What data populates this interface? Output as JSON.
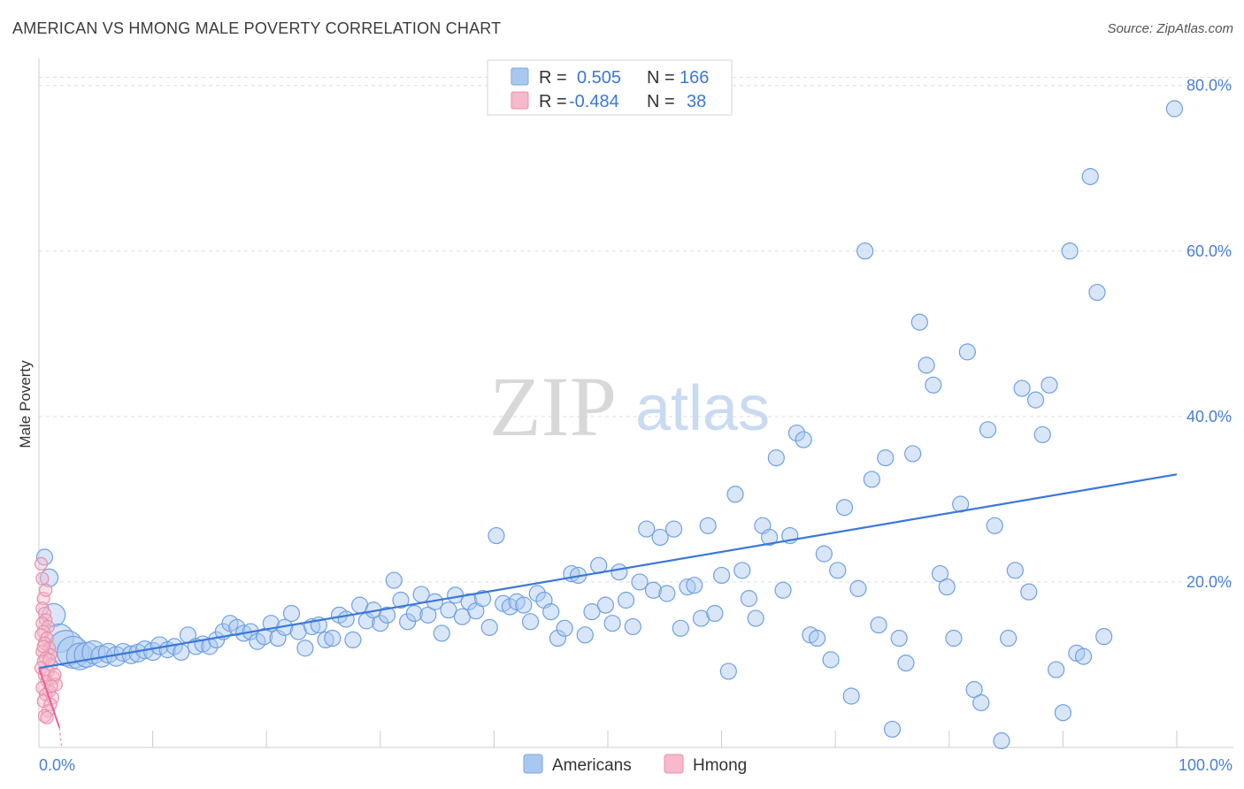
{
  "header": {
    "title": "AMERICAN VS HMONG MALE POVERTY CORRELATION CHART",
    "source": "Source: ZipAtlas.com"
  },
  "watermark": {
    "zip": "ZIP",
    "atlas": "atlas"
  },
  "legend": {
    "rows": [
      {
        "r_label": "R =",
        "r_value": "0.505",
        "n_label": "N =",
        "n_value": "166",
        "color": "#a9c8f0",
        "stroke": "#7aa6e0"
      },
      {
        "r_label": "R =",
        "r_value": "-0.484",
        "n_label": "N =",
        "n_value": "38",
        "color": "#f7b9cb",
        "stroke": "#e890aa"
      }
    ]
  },
  "bottom_legend": [
    {
      "label": "Americans",
      "color": "#a9c8f0",
      "stroke": "#7aa6e0"
    },
    {
      "label": "Hmong",
      "color": "#f7b9cb",
      "stroke": "#e890aa"
    }
  ],
  "chart_data": {
    "type": "scatter",
    "title": "AMERICAN VS HMONG MALE POVERTY CORRELATION CHART",
    "xlabel": "",
    "ylabel": "Male Poverty",
    "xlim": [
      0,
      100
    ],
    "ylim": [
      0,
      82
    ],
    "x_tick_labels": [
      {
        "value": 0,
        "label": "0.0%"
      },
      {
        "value": 100,
        "label": "100.0%"
      }
    ],
    "y_tick_labels": [
      {
        "value": 20,
        "label": "20.0%"
      },
      {
        "value": 40,
        "label": "40.0%"
      },
      {
        "value": 60,
        "label": "60.0%"
      },
      {
        "value": 80,
        "label": "80.0%"
      }
    ],
    "grid": "horizontal dashed",
    "series": [
      {
        "name": "Americans",
        "color": "#6fa0e4",
        "fill": "#a9c8f0",
        "trend": {
          "x": [
            0,
            100
          ],
          "y": [
            9.6,
            33.0
          ],
          "color": "#3b78d8"
        },
        "points": [
          [
            0.5,
            23.0,
            9
          ],
          [
            0.9,
            20.5,
            10
          ],
          [
            1.3,
            16.0,
            13
          ],
          [
            1.8,
            13.2,
            16
          ],
          [
            2.4,
            12.0,
            20
          ],
          [
            3.0,
            11.5,
            18
          ],
          [
            3.6,
            11.0,
            15
          ],
          [
            4.2,
            11.2,
            14
          ],
          [
            4.8,
            11.5,
            13
          ],
          [
            5.5,
            11.0,
            12
          ],
          [
            6.1,
            11.4,
            11
          ],
          [
            6.8,
            11.0,
            11
          ],
          [
            7.4,
            11.5,
            10
          ],
          [
            8.1,
            11.2,
            10
          ],
          [
            8.7,
            11.4,
            10
          ],
          [
            9.3,
            11.8,
            10
          ],
          [
            10.0,
            11.6,
            10
          ],
          [
            10.6,
            12.3,
            10
          ],
          [
            11.3,
            11.8,
            9
          ],
          [
            11.9,
            12.2,
            9
          ],
          [
            12.5,
            11.5,
            9
          ],
          [
            13.1,
            13.6,
            9
          ],
          [
            13.8,
            12.2,
            9
          ],
          [
            14.4,
            12.5,
            9
          ],
          [
            15.0,
            12.2,
            9
          ],
          [
            15.6,
            13.0,
            9
          ],
          [
            16.2,
            14.0,
            9
          ],
          [
            16.8,
            15.0,
            9
          ],
          [
            17.4,
            14.5,
            9
          ],
          [
            18.0,
            13.8,
            9
          ],
          [
            18.6,
            14.0,
            9
          ],
          [
            19.2,
            12.8,
            9
          ],
          [
            19.8,
            13.4,
            9
          ],
          [
            20.4,
            15.0,
            9
          ],
          [
            21.0,
            13.2,
            9
          ],
          [
            21.6,
            14.5,
            9
          ],
          [
            22.2,
            16.2,
            9
          ],
          [
            22.8,
            14.0,
            9
          ],
          [
            23.4,
            12.0,
            9
          ],
          [
            24.0,
            14.6,
            9
          ],
          [
            24.6,
            14.8,
            9
          ],
          [
            25.2,
            13.0,
            9
          ],
          [
            25.8,
            13.2,
            9
          ],
          [
            26.4,
            16.0,
            9
          ],
          [
            27.0,
            15.5,
            9
          ],
          [
            27.6,
            13.0,
            9
          ],
          [
            28.2,
            17.2,
            9
          ],
          [
            28.8,
            15.3,
            9
          ],
          [
            29.4,
            16.6,
            9
          ],
          [
            30.0,
            15.0,
            9
          ],
          [
            30.6,
            16.0,
            9
          ],
          [
            31.2,
            20.2,
            9
          ],
          [
            31.8,
            17.8,
            9
          ],
          [
            32.4,
            15.2,
            9
          ],
          [
            33.0,
            16.2,
            9
          ],
          [
            33.6,
            18.5,
            9
          ],
          [
            34.2,
            16.0,
            9
          ],
          [
            34.8,
            17.6,
            9
          ],
          [
            35.4,
            13.8,
            9
          ],
          [
            36.0,
            16.6,
            9
          ],
          [
            36.6,
            18.4,
            9
          ],
          [
            37.2,
            15.8,
            9
          ],
          [
            37.8,
            17.6,
            9
          ],
          [
            38.4,
            16.5,
            9
          ],
          [
            39.0,
            18.0,
            9
          ],
          [
            39.6,
            14.5,
            9
          ],
          [
            40.2,
            25.6,
            9
          ],
          [
            40.8,
            17.4,
            9
          ],
          [
            41.4,
            17.0,
            9
          ],
          [
            42.0,
            17.6,
            9
          ],
          [
            42.6,
            17.2,
            9
          ],
          [
            43.2,
            15.2,
            9
          ],
          [
            43.8,
            18.6,
            9
          ],
          [
            44.4,
            17.8,
            9
          ],
          [
            45.0,
            16.4,
            9
          ],
          [
            45.6,
            13.2,
            9
          ],
          [
            46.2,
            14.4,
            9
          ],
          [
            46.8,
            21.0,
            9
          ],
          [
            47.4,
            20.8,
            9
          ],
          [
            48.0,
            13.6,
            9
          ],
          [
            48.6,
            16.4,
            9
          ],
          [
            49.2,
            22.0,
            9
          ],
          [
            49.8,
            17.2,
            9
          ],
          [
            50.4,
            15.0,
            9
          ],
          [
            51.0,
            21.2,
            9
          ],
          [
            51.6,
            17.8,
            9
          ],
          [
            52.2,
            14.6,
            9
          ],
          [
            52.8,
            20.0,
            9
          ],
          [
            53.4,
            26.4,
            9
          ],
          [
            54.0,
            19.0,
            9
          ],
          [
            54.6,
            25.4,
            9
          ],
          [
            55.2,
            18.6,
            9
          ],
          [
            55.8,
            26.4,
            9
          ],
          [
            56.4,
            14.4,
            9
          ],
          [
            57.0,
            19.4,
            9
          ],
          [
            57.6,
            19.6,
            9
          ],
          [
            58.2,
            15.6,
            9
          ],
          [
            58.8,
            26.8,
            9
          ],
          [
            59.4,
            16.2,
            9
          ],
          [
            60.0,
            20.8,
            9
          ],
          [
            60.6,
            9.2,
            9
          ],
          [
            61.2,
            30.6,
            9
          ],
          [
            61.8,
            21.4,
            9
          ],
          [
            62.4,
            18.0,
            9
          ],
          [
            63.0,
            15.6,
            9
          ],
          [
            63.6,
            26.8,
            9
          ],
          [
            64.2,
            25.4,
            9
          ],
          [
            64.8,
            35.0,
            9
          ],
          [
            65.4,
            19.0,
            9
          ],
          [
            66.0,
            25.6,
            9
          ],
          [
            66.6,
            38.0,
            9
          ],
          [
            67.2,
            37.2,
            9
          ],
          [
            67.8,
            13.6,
            9
          ],
          [
            68.4,
            13.2,
            9
          ],
          [
            69.0,
            23.4,
            9
          ],
          [
            69.6,
            10.6,
            9
          ],
          [
            70.2,
            21.4,
            9
          ],
          [
            70.8,
            29.0,
            9
          ],
          [
            71.4,
            6.2,
            9
          ],
          [
            72.0,
            19.2,
            9
          ],
          [
            72.6,
            60.0,
            9
          ],
          [
            73.2,
            32.4,
            9
          ],
          [
            73.8,
            14.8,
            9
          ],
          [
            74.4,
            35.0,
            9
          ],
          [
            75.0,
            2.2,
            9
          ],
          [
            75.6,
            13.2,
            9
          ],
          [
            76.2,
            10.2,
            9
          ],
          [
            76.8,
            35.5,
            9
          ],
          [
            77.4,
            51.4,
            9
          ],
          [
            78.0,
            46.2,
            9
          ],
          [
            78.6,
            43.8,
            9
          ],
          [
            79.2,
            21.0,
            9
          ],
          [
            79.8,
            19.4,
            9
          ],
          [
            80.4,
            13.2,
            9
          ],
          [
            81.0,
            29.4,
            9
          ],
          [
            81.6,
            47.8,
            9
          ],
          [
            82.2,
            7.0,
            9
          ],
          [
            82.8,
            5.4,
            9
          ],
          [
            83.4,
            38.4,
            9
          ],
          [
            84.0,
            26.8,
            9
          ],
          [
            84.6,
            0.8,
            9
          ],
          [
            85.2,
            13.2,
            9
          ],
          [
            85.8,
            21.4,
            9
          ],
          [
            86.4,
            43.4,
            9
          ],
          [
            87.0,
            18.8,
            9
          ],
          [
            87.6,
            42.0,
            9
          ],
          [
            88.2,
            37.8,
            9
          ],
          [
            88.8,
            43.8,
            9
          ],
          [
            89.4,
            9.4,
            9
          ],
          [
            90.0,
            4.2,
            9
          ],
          [
            90.6,
            60.0,
            9
          ],
          [
            91.2,
            11.4,
            9
          ],
          [
            91.8,
            11.0,
            9
          ],
          [
            92.4,
            69.0,
            9
          ],
          [
            93.0,
            55.0,
            9
          ],
          [
            93.6,
            13.4,
            9
          ],
          [
            99.8,
            77.2,
            9
          ]
        ]
      },
      {
        "name": "Hmong",
        "color": "#e890aa",
        "fill": "#f7b9cb",
        "trend": {
          "x": [
            0,
            1.8
          ],
          "y": [
            9.6,
            2.4
          ],
          "color": "#e8609a",
          "dashed_to": [
            2.0,
            0.0
          ]
        },
        "points": [
          [
            0.2,
            22.2,
            7
          ],
          [
            0.4,
            18.0,
            7
          ],
          [
            0.3,
            16.8,
            7
          ],
          [
            0.5,
            16.2,
            7
          ],
          [
            0.6,
            15.4,
            7
          ],
          [
            0.3,
            15.0,
            7
          ],
          [
            0.8,
            14.6,
            7
          ],
          [
            0.4,
            14.0,
            7
          ],
          [
            0.2,
            13.6,
            7
          ],
          [
            0.7,
            13.2,
            7
          ],
          [
            0.5,
            12.6,
            7
          ],
          [
            0.9,
            12.0,
            7
          ],
          [
            0.3,
            11.6,
            7
          ],
          [
            1.0,
            11.2,
            7
          ],
          [
            0.6,
            10.8,
            7
          ],
          [
            0.4,
            10.4,
            7
          ],
          [
            1.1,
            10.0,
            7
          ],
          [
            0.2,
            9.6,
            7
          ],
          [
            0.8,
            9.2,
            7
          ],
          [
            0.5,
            8.8,
            7
          ],
          [
            1.3,
            8.4,
            7
          ],
          [
            0.7,
            8.0,
            7
          ],
          [
            1.5,
            7.6,
            7
          ],
          [
            0.3,
            7.2,
            7
          ],
          [
            0.9,
            6.8,
            7
          ],
          [
            0.6,
            6.4,
            7
          ],
          [
            1.2,
            6.0,
            7
          ],
          [
            0.4,
            5.6,
            7
          ],
          [
            1.0,
            5.2,
            7
          ],
          [
            0.8,
            4.4,
            7
          ],
          [
            0.5,
            3.8,
            7
          ],
          [
            0.7,
            3.6,
            7
          ],
          [
            0.3,
            20.4,
            7
          ],
          [
            0.6,
            19.0,
            7
          ],
          [
            1.4,
            8.8,
            7
          ],
          [
            0.9,
            10.6,
            7
          ],
          [
            1.1,
            7.4,
            7
          ],
          [
            0.4,
            12.2,
            7
          ]
        ]
      }
    ]
  }
}
